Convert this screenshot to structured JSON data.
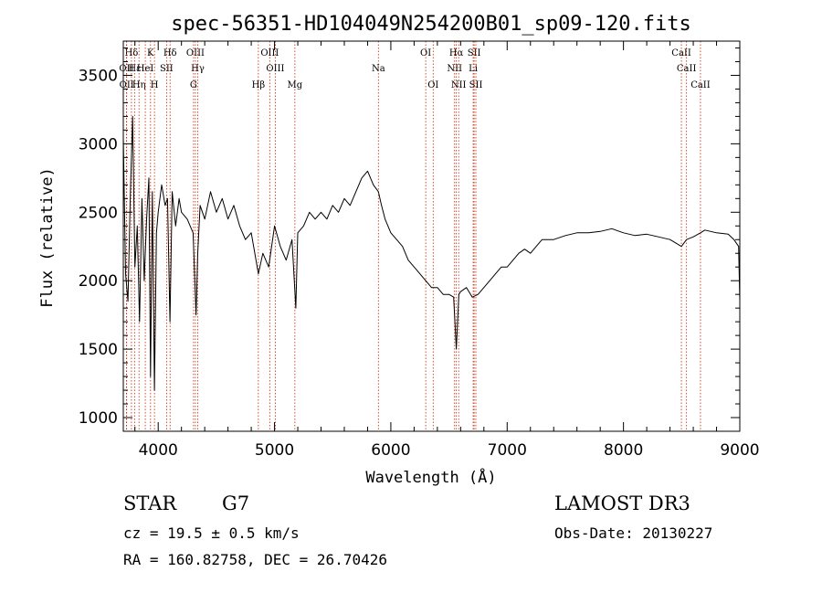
{
  "chart_data": {
    "type": "line",
    "title": "spec-56351-HD104049N254200B01_sp09-120.fits",
    "xlabel": "Wavelength (Å)",
    "ylabel": "Flux (relative)",
    "xlim": [
      3700,
      9000
    ],
    "ylim": [
      900,
      3750
    ],
    "xticks": [
      4000,
      5000,
      6000,
      7000,
      8000,
      9000
    ],
    "yticks": [
      1000,
      1500,
      2000,
      2500,
      3000,
      3500
    ],
    "grid": false,
    "series": [
      {
        "x": [
          3700,
          3720,
          3740,
          3760,
          3780,
          3800,
          3820,
          3840,
          3860,
          3880,
          3900,
          3920,
          3934,
          3950,
          3968,
          3985,
          4000,
          4030,
          4060,
          4080,
          4101,
          4120,
          4150,
          4180,
          4200,
          4250,
          4300,
          4326,
          4340,
          4360,
          4400,
          4450,
          4500,
          4550,
          4600,
          4650,
          4700,
          4750,
          4800,
          4861,
          4900,
          4950,
          5000,
          5050,
          5100,
          5150,
          5183,
          5200,
          5250,
          5300,
          5350,
          5400,
          5450,
          5500,
          5550,
          5600,
          5650,
          5700,
          5750,
          5800,
          5850,
          5893,
          5920,
          5950,
          6000,
          6050,
          6100,
          6150,
          6200,
          6250,
          6300,
          6350,
          6400,
          6450,
          6500,
          6540,
          6563,
          6585,
          6600,
          6650,
          6700,
          6750,
          6800,
          6850,
          6900,
          6950,
          7000,
          7050,
          7100,
          7150,
          7200,
          7250,
          7300,
          7400,
          7500,
          7600,
          7700,
          7800,
          7900,
          8000,
          8100,
          8200,
          8300,
          8400,
          8498,
          8542,
          8600,
          8662,
          8700,
          8800,
          8900,
          8950,
          8990,
          9000
        ],
        "values": [
          3050,
          2050,
          1850,
          2600,
          3200,
          2100,
          2400,
          1700,
          2600,
          2000,
          2450,
          2750,
          1300,
          2650,
          1200,
          2350,
          2500,
          2700,
          2550,
          2600,
          1700,
          2650,
          2400,
          2600,
          2500,
          2450,
          2350,
          1750,
          2200,
          2550,
          2450,
          2650,
          2500,
          2600,
          2450,
          2550,
          2400,
          2300,
          2350,
          2050,
          2200,
          2100,
          2400,
          2250,
          2150,
          2300,
          1800,
          2350,
          2400,
          2500,
          2450,
          2500,
          2450,
          2550,
          2500,
          2600,
          2550,
          2650,
          2750,
          2800,
          2700,
          2650,
          2550,
          2450,
          2350,
          2300,
          2250,
          2150,
          2100,
          2050,
          2000,
          1950,
          1950,
          1900,
          1900,
          1880,
          1500,
          1900,
          1920,
          1950,
          1880,
          1900,
          1950,
          2000,
          2050,
          2100,
          2100,
          2150,
          2200,
          2230,
          2200,
          2250,
          2300,
          2300,
          2330,
          2350,
          2350,
          2360,
          2380,
          2350,
          2330,
          2340,
          2320,
          2300,
          2250,
          2300,
          2320,
          2350,
          2370,
          2350,
          2340,
          2300,
          2250,
          1850
        ]
      }
    ],
    "lines": [
      {
        "label": "Hδ",
        "wave": 3770,
        "row": 0
      },
      {
        "label": "OII",
        "wave": 3727,
        "row": 1
      },
      {
        "label": "OII",
        "wave": 3729,
        "row": 2
      },
      {
        "label": "Hε",
        "wave": 3797,
        "row": 1
      },
      {
        "label": "Hη",
        "wave": 3835,
        "row": 2
      },
      {
        "label": "K",
        "wave": 3934,
        "row": 0
      },
      {
        "label": "HeI",
        "wave": 3889,
        "row": 1
      },
      {
        "label": "H",
        "wave": 3968,
        "row": 2
      },
      {
        "label": "SII",
        "wave": 4072,
        "row": 1
      },
      {
        "label": "Hδ",
        "wave": 4102,
        "row": 0
      },
      {
        "label": "OIII",
        "wave": 4320,
        "row": 0
      },
      {
        "label": "Hγ",
        "wave": 4340,
        "row": 1
      },
      {
        "label": "G",
        "wave": 4304,
        "row": 2
      },
      {
        "label": "Hβ",
        "wave": 4861,
        "row": 2
      },
      {
        "label": "OIII",
        "wave": 4959,
        "row": 0
      },
      {
        "label": "OIII",
        "wave": 5007,
        "row": 1
      },
      {
        "label": "Mg",
        "wave": 5175,
        "row": 2
      },
      {
        "label": "Na",
        "wave": 5893,
        "row": 1
      },
      {
        "label": "OI",
        "wave": 6300,
        "row": 0
      },
      {
        "label": "OI",
        "wave": 6364,
        "row": 2
      },
      {
        "label": "Hα",
        "wave": 6563,
        "row": 0
      },
      {
        "label": "NII",
        "wave": 6548,
        "row": 1
      },
      {
        "label": "NII",
        "wave": 6583,
        "row": 2
      },
      {
        "label": "SII",
        "wave": 6716,
        "row": 0
      },
      {
        "label": "SII",
        "wave": 6731,
        "row": 2
      },
      {
        "label": "Li",
        "wave": 6708,
        "row": 1
      },
      {
        "label": "CaII",
        "wave": 8498,
        "row": 0
      },
      {
        "label": "CaII",
        "wave": 8542,
        "row": 1
      },
      {
        "label": "CaII",
        "wave": 8662,
        "row": 2
      }
    ]
  },
  "info": {
    "class": "STAR",
    "subclass": "G7",
    "survey": "LAMOST DR3",
    "cz": "cz = 19.5 ± 0.5 km/s",
    "obs_date": "Obs-Date: 20130227",
    "radec": "RA = 160.82758, DEC =  26.70426"
  },
  "colors": {
    "spectrum": "#000000",
    "line_marker": "#cc2200"
  }
}
